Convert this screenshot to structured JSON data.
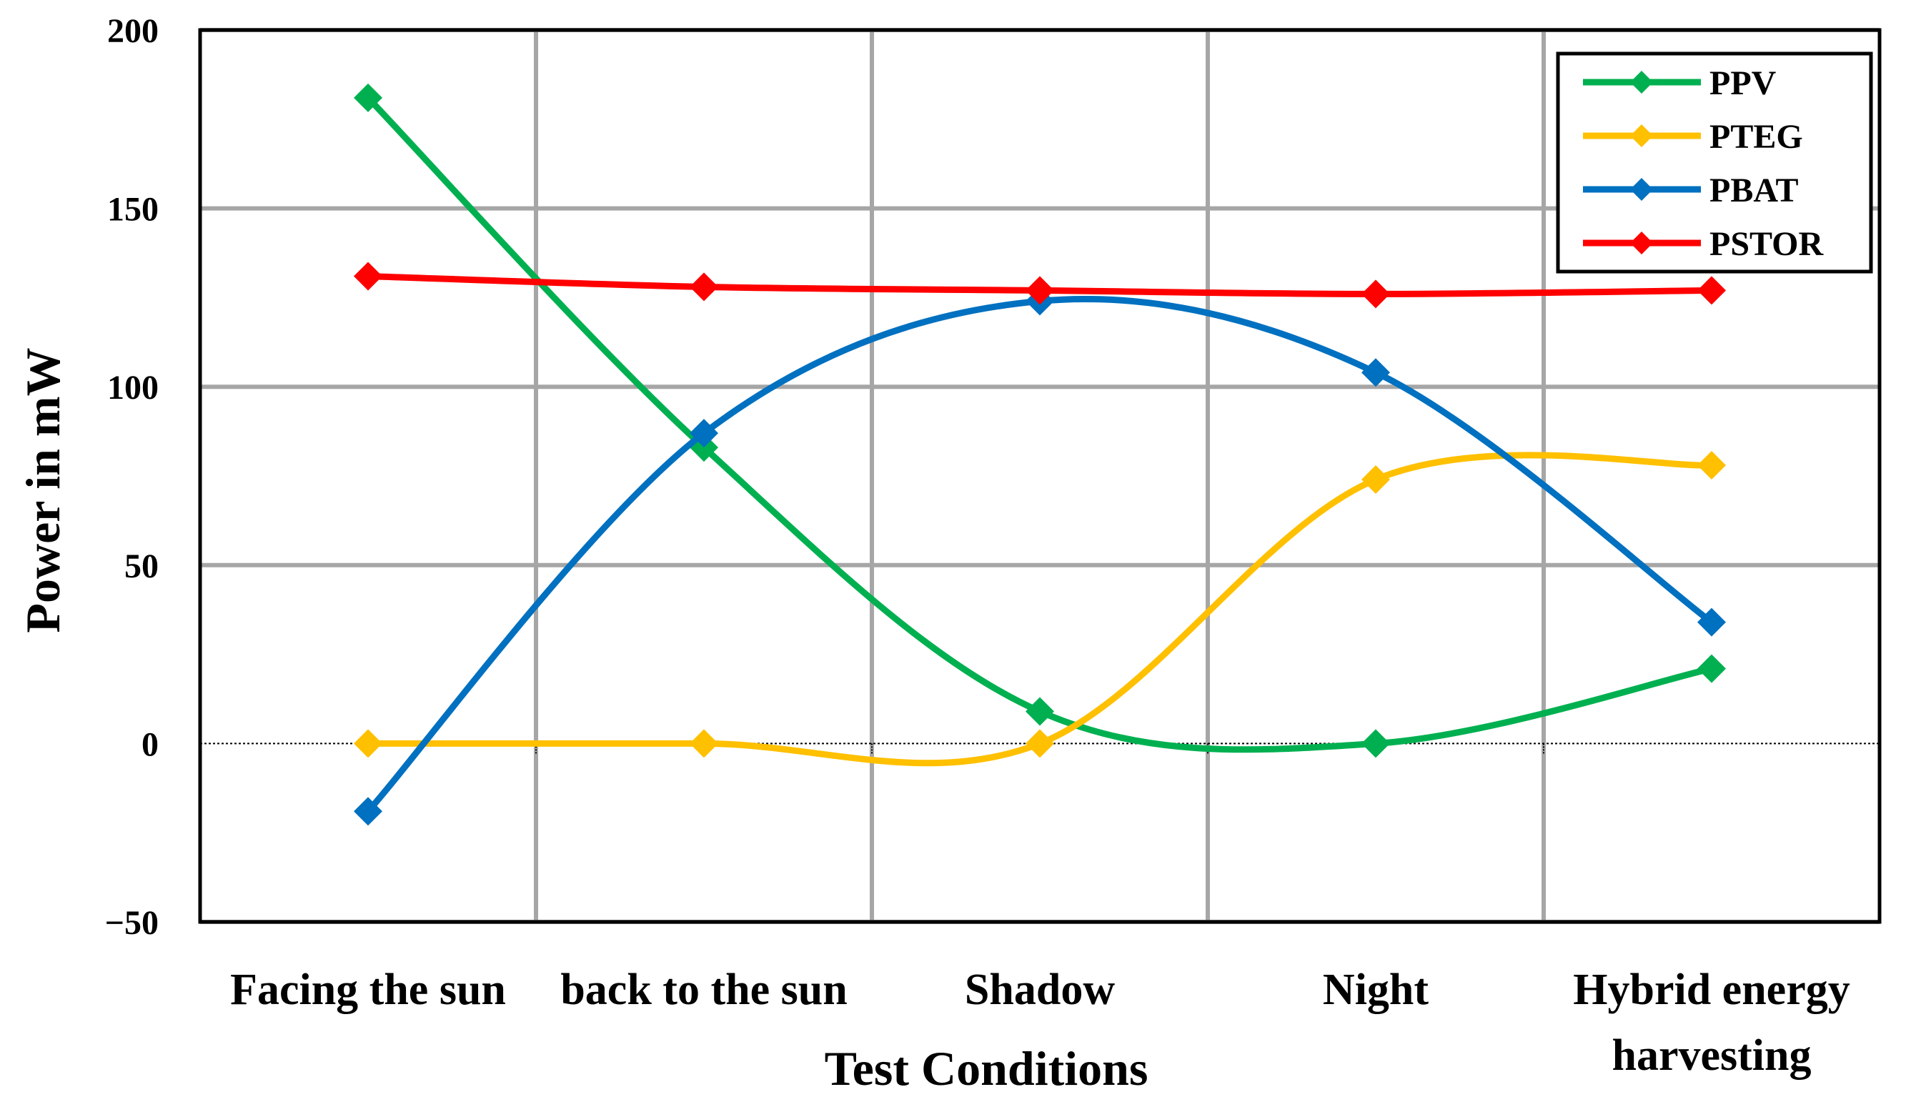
{
  "chart_data": {
    "type": "line",
    "categories": [
      "Facing the sun",
      "back to the sun",
      "Shadow",
      "Night",
      "Hybrid energy harvesting"
    ],
    "category_lines": [
      [
        "Facing the sun"
      ],
      [
        "back to the sun"
      ],
      [
        "Shadow"
      ],
      [
        "Night"
      ],
      [
        "Hybrid energy",
        "harvesting"
      ]
    ],
    "xlabel": "Test Conditions",
    "ylabel": "Power in mW",
    "ylim": [
      -50,
      200
    ],
    "yticks": [
      -50,
      0,
      50,
      100,
      150,
      200
    ],
    "ytick_labels": [
      "−50",
      "0",
      "50",
      "100",
      "150",
      "200"
    ],
    "grid": true,
    "legend_position": "top-right",
    "smooth": true,
    "marker": "diamond",
    "series": [
      {
        "name": "PPV",
        "color": "#00B050",
        "values": [
          181,
          83,
          9,
          0,
          21
        ]
      },
      {
        "name": "PTEG",
        "color": "#FFC000",
        "values": [
          0,
          0,
          0,
          74,
          78
        ]
      },
      {
        "name": "PBAT",
        "color": "#0070C0",
        "values": [
          -19,
          87,
          124,
          104,
          34
        ]
      },
      {
        "name": "PSTOR",
        "color": "#FF0000",
        "values": [
          131,
          128,
          127,
          126,
          127
        ]
      }
    ]
  }
}
